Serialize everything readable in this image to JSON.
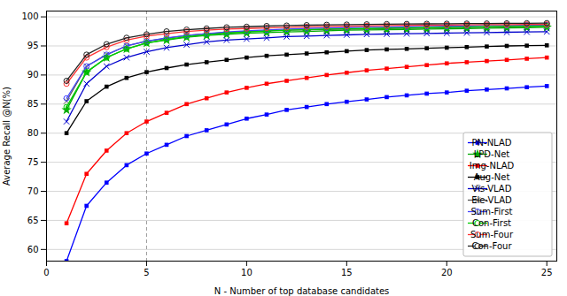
{
  "chart_data": {
    "type": "line",
    "xlabel": "N - Number of top database candidates",
    "ylabel": "Average Recall @N(%)",
    "xlim": [
      0,
      25.5
    ],
    "ylim": [
      58,
      101
    ],
    "xticks": [
      0,
      5,
      10,
      15,
      20,
      25
    ],
    "yticks": [
      60,
      65,
      70,
      75,
      80,
      85,
      90,
      95,
      100
    ],
    "grid": "y",
    "legend": "lower right",
    "vline_x": 5,
    "x": [
      1,
      2,
      3,
      4,
      5,
      6,
      7,
      8,
      9,
      10,
      11,
      12,
      13,
      14,
      15,
      16,
      17,
      18,
      19,
      20,
      21,
      22,
      23,
      24,
      25
    ],
    "series": [
      {
        "name": "PN-NLAD",
        "color": "#0000ff",
        "marker": "square",
        "values": [
          58.0,
          67.5,
          71.5,
          74.5,
          76.5,
          78.0,
          79.5,
          80.5,
          81.5,
          82.5,
          83.2,
          84.0,
          84.5,
          85.0,
          85.4,
          85.8,
          86.2,
          86.5,
          86.8,
          87.0,
          87.3,
          87.5,
          87.7,
          87.9,
          88.1
        ]
      },
      {
        "name": "LPD-Net",
        "color": "#00aa00",
        "marker": "star",
        "values": [
          84.0,
          90.5,
          93.0,
          94.5,
          95.5,
          96.0,
          96.5,
          96.8,
          97.0,
          97.2,
          97.3,
          97.4,
          97.5,
          97.6,
          97.7,
          97.75,
          97.8,
          97.85,
          97.9,
          97.95,
          98.0,
          98.05,
          98.1,
          98.15,
          98.2
        ]
      },
      {
        "name": "Img-NLAD",
        "color": "#ff0000",
        "marker": "square",
        "values": [
          64.5,
          73.0,
          77.0,
          80.0,
          82.0,
          83.5,
          85.0,
          86.0,
          87.0,
          87.8,
          88.5,
          89.0,
          89.5,
          90.0,
          90.4,
          90.8,
          91.1,
          91.4,
          91.7,
          92.0,
          92.2,
          92.4,
          92.6,
          92.8,
          93.0
        ]
      },
      {
        "name": "Aug-Net",
        "color": "#000000",
        "marker": "square",
        "values": [
          80.0,
          85.5,
          88.0,
          89.5,
          90.5,
          91.2,
          91.8,
          92.2,
          92.6,
          93.0,
          93.3,
          93.5,
          93.7,
          93.9,
          94.1,
          94.3,
          94.4,
          94.5,
          94.6,
          94.7,
          94.8,
          94.9,
          95.0,
          95.05,
          95.1
        ]
      },
      {
        "name": "Vis-VLAD",
        "color": "#0000cc",
        "marker": "x",
        "values": [
          82.0,
          88.5,
          91.5,
          93.0,
          94.0,
          94.7,
          95.2,
          95.7,
          96.0,
          96.2,
          96.4,
          96.6,
          96.7,
          96.8,
          96.9,
          97.0,
          97.05,
          97.1,
          97.15,
          97.2,
          97.25,
          97.3,
          97.35,
          97.4,
          97.45
        ]
      },
      {
        "name": "Ele-VLAD",
        "color": "#555555",
        "marker": "x",
        "values": [
          85.5,
          91.5,
          93.5,
          95.0,
          95.8,
          96.3,
          96.8,
          97.1,
          97.3,
          97.5,
          97.6,
          97.7,
          97.8,
          97.85,
          97.9,
          97.95,
          98.0,
          98.05,
          98.1,
          98.15,
          98.2,
          98.25,
          98.3,
          98.35,
          98.4
        ]
      },
      {
        "name": "Sum-First",
        "color": "#4444ff",
        "marker": "open_circle",
        "values": [
          86.0,
          91.5,
          93.5,
          95.0,
          95.8,
          96.4,
          96.8,
          97.1,
          97.4,
          97.6,
          97.75,
          97.9,
          98.0,
          98.1,
          98.15,
          98.2,
          98.25,
          98.3,
          98.35,
          98.4,
          98.45,
          98.5,
          98.52,
          98.55,
          98.58
        ]
      },
      {
        "name": "Con-First",
        "color": "#00cc00",
        "marker": "open_circle",
        "values": [
          84.5,
          90.5,
          93.0,
          94.5,
          95.5,
          96.1,
          96.6,
          96.9,
          97.2,
          97.4,
          97.55,
          97.7,
          97.8,
          97.9,
          97.95,
          98.0,
          98.05,
          98.1,
          98.15,
          98.2,
          98.25,
          98.3,
          98.35,
          98.38,
          98.42
        ]
      },
      {
        "name": "Sum-Four",
        "color": "#ff3333",
        "marker": "open_circle",
        "values": [
          88.5,
          93.0,
          94.8,
          96.0,
          96.7,
          97.1,
          97.5,
          97.7,
          97.9,
          98.0,
          98.1,
          98.2,
          98.28,
          98.35,
          98.4,
          98.45,
          98.5,
          98.54,
          98.57,
          98.6,
          98.63,
          98.65,
          98.67,
          98.69,
          98.7
        ]
      },
      {
        "name": "Con-Four",
        "color": "#222222",
        "marker": "open_circle",
        "values": [
          89.0,
          93.5,
          95.3,
          96.4,
          97.0,
          97.5,
          97.8,
          98.0,
          98.2,
          98.3,
          98.42,
          98.5,
          98.57,
          98.63,
          98.67,
          98.71,
          98.75,
          98.78,
          98.8,
          98.82,
          98.84,
          98.86,
          98.88,
          98.9,
          98.92
        ]
      }
    ]
  }
}
